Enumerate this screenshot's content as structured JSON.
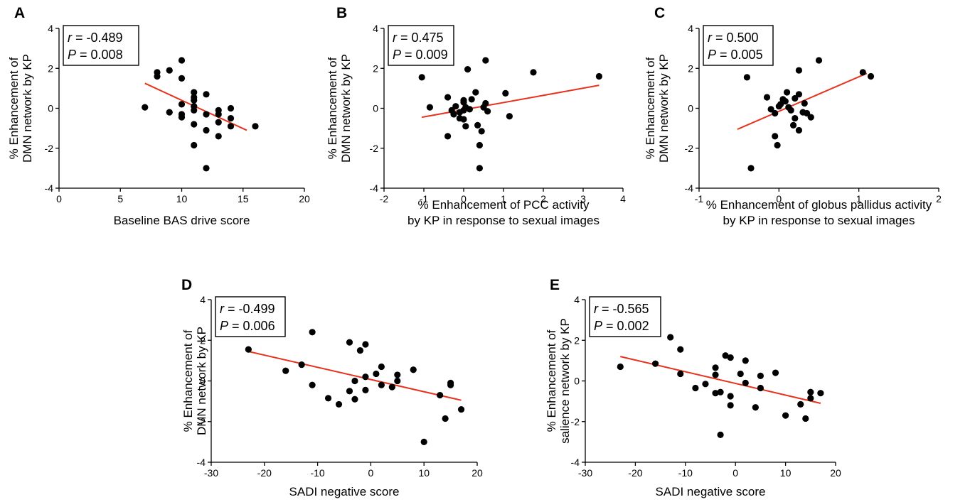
{
  "colors": {
    "fit_line": "#e8321e",
    "points": "#000000"
  },
  "chart_data": [
    {
      "type": "scatter",
      "panel": "A",
      "xlabel": [
        "Baseline BAS drive score"
      ],
      "ylabel": [
        "% Enhancement of",
        "DMN network by KP"
      ],
      "xlim": [
        0,
        20
      ],
      "ylim": [
        -4,
        4
      ],
      "xticks": [
        0,
        5,
        10,
        15,
        20
      ],
      "yticks": [
        -4,
        -2,
        0,
        2,
        4
      ],
      "stats": {
        "r_label": "r",
        "r_value": "= -0.489",
        "p_label": "P",
        "p_value": "= 0.008"
      },
      "fit": {
        "x": [
          7,
          15.3
        ],
        "y": [
          1.25,
          -1.1
        ]
      },
      "points": [
        [
          7,
          0.05
        ],
        [
          8,
          1.8
        ],
        [
          8,
          1.6
        ],
        [
          9,
          1.9
        ],
        [
          9,
          -0.2
        ],
        [
          10,
          2.4
        ],
        [
          10,
          1.5
        ],
        [
          10,
          0.2
        ],
        [
          10,
          -0.3
        ],
        [
          10,
          -0.45
        ],
        [
          11,
          0.8
        ],
        [
          11,
          0.55
        ],
        [
          11,
          0.4
        ],
        [
          11,
          0.1
        ],
        [
          11,
          -0.1
        ],
        [
          11,
          -0.8
        ],
        [
          11,
          -1.85
        ],
        [
          12,
          0.7
        ],
        [
          12,
          -0.3
        ],
        [
          12,
          -1.1
        ],
        [
          12,
          -3.0
        ],
        [
          13,
          -0.1
        ],
        [
          13,
          -0.3
        ],
        [
          13,
          -0.7
        ],
        [
          13,
          -1.4
        ],
        [
          14,
          0.0
        ],
        [
          14,
          -0.5
        ],
        [
          14,
          -0.9
        ],
        [
          16,
          -0.9
        ]
      ]
    },
    {
      "type": "scatter",
      "panel": "B",
      "xlabel": [
        "% Enhancement of PCC activity",
        "by KP in response to sexual images"
      ],
      "ylabel": [
        "% Enhancement of",
        "DMN network by KP"
      ],
      "xlim": [
        -2,
        4
      ],
      "ylim": [
        -4,
        4
      ],
      "xticks": [
        -2,
        -1,
        0,
        1,
        2,
        3,
        4
      ],
      "yticks": [
        -4,
        -2,
        0,
        2,
        4
      ],
      "stats": {
        "r_label": "r",
        "r_value": "= 0.475",
        "p_label": "P",
        "p_value": "= 0.009"
      },
      "fit": {
        "x": [
          -1.05,
          3.4
        ],
        "y": [
          -0.45,
          1.15
        ]
      },
      "points": [
        [
          -1.05,
          1.55
        ],
        [
          -0.85,
          0.05
        ],
        [
          -0.4,
          0.55
        ],
        [
          -0.4,
          -1.4
        ],
        [
          -0.3,
          -0.1
        ],
        [
          -0.25,
          -0.3
        ],
        [
          -0.2,
          0.1
        ],
        [
          -0.1,
          -0.2
        ],
        [
          -0.1,
          -0.5
        ],
        [
          0.0,
          0.4
        ],
        [
          0.0,
          0.3
        ],
        [
          0.0,
          -0.1
        ],
        [
          0.0,
          -0.55
        ],
        [
          0.05,
          -0.9
        ],
        [
          0.05,
          0.05
        ],
        [
          0.1,
          1.95
        ],
        [
          0.15,
          -0.05
        ],
        [
          0.2,
          0.45
        ],
        [
          0.3,
          0.8
        ],
        [
          0.35,
          -0.85
        ],
        [
          0.4,
          -1.85
        ],
        [
          0.4,
          -3.0
        ],
        [
          0.45,
          -1.15
        ],
        [
          0.5,
          0.05
        ],
        [
          0.55,
          2.4
        ],
        [
          0.55,
          0.25
        ],
        [
          0.6,
          -0.15
        ],
        [
          1.05,
          0.75
        ],
        [
          1.15,
          -0.4
        ],
        [
          1.75,
          1.8
        ],
        [
          3.4,
          1.6
        ]
      ]
    },
    {
      "type": "scatter",
      "panel": "C",
      "xlabel": [
        "% Enhancement of globus pallidus activity",
        "by KP in response to sexual images"
      ],
      "ylabel": [
        "% Enhancement of",
        "DMN network by KP"
      ],
      "xlim": [
        -1,
        2
      ],
      "ylim": [
        -4,
        4
      ],
      "xticks": [
        -1,
        0,
        1,
        2
      ],
      "yticks": [
        -4,
        -2,
        0,
        2,
        4
      ],
      "stats": {
        "r_label": "r",
        "r_value": "= 0.500",
        "p_label": "P",
        "p_value": "= 0.005"
      },
      "fit": {
        "x": [
          -0.52,
          1.1
        ],
        "y": [
          -1.05,
          1.75
        ]
      },
      "points": [
        [
          -0.4,
          1.55
        ],
        [
          -0.35,
          -3.0
        ],
        [
          -0.15,
          0.55
        ],
        [
          -0.1,
          -0.05
        ],
        [
          -0.05,
          -0.25
        ],
        [
          -0.05,
          -1.4
        ],
        [
          -0.02,
          -1.85
        ],
        [
          0.0,
          0.1
        ],
        [
          0.02,
          0.2
        ],
        [
          0.05,
          0.45
        ],
        [
          0.08,
          0.35
        ],
        [
          0.1,
          0.8
        ],
        [
          0.12,
          0.05
        ],
        [
          0.15,
          -0.1
        ],
        [
          0.18,
          -0.85
        ],
        [
          0.2,
          -0.5
        ],
        [
          0.2,
          0.5
        ],
        [
          0.25,
          1.9
        ],
        [
          0.25,
          0.7
        ],
        [
          0.25,
          -1.1
        ],
        [
          0.3,
          -0.2
        ],
        [
          0.32,
          0.25
        ],
        [
          0.35,
          -0.25
        ],
        [
          0.4,
          -0.45
        ],
        [
          0.5,
          2.4
        ],
        [
          1.05,
          1.8
        ],
        [
          1.15,
          1.6
        ]
      ]
    },
    {
      "type": "scatter",
      "panel": "D",
      "xlabel": [
        "SADI negative score"
      ],
      "ylabel": [
        "% Enhancement of",
        "DMN network by KP"
      ],
      "xlim": [
        -30,
        20
      ],
      "ylim": [
        -4,
        4
      ],
      "xticks": [
        -30,
        -20,
        -10,
        0,
        10,
        20
      ],
      "yticks": [
        -4,
        -2,
        0,
        2,
        4
      ],
      "stats": {
        "r_label": "r",
        "r_value": "= -0.499",
        "p_label": "P",
        "p_value": "= 0.006"
      },
      "fit": {
        "x": [
          -23,
          17
        ],
        "y": [
          1.45,
          -0.95
        ]
      },
      "points": [
        [
          -23,
          1.55
        ],
        [
          -16,
          0.5
        ],
        [
          -13,
          0.8
        ],
        [
          -11,
          2.4
        ],
        [
          -11,
          -0.2
        ],
        [
          -8,
          -0.85
        ],
        [
          -6,
          -1.15
        ],
        [
          -4,
          1.9
        ],
        [
          -4,
          -0.5
        ],
        [
          -3,
          0.0
        ],
        [
          -3,
          -0.9
        ],
        [
          -2,
          1.5
        ],
        [
          -1,
          1.8
        ],
        [
          -1,
          0.2
        ],
        [
          -1,
          -0.45
        ],
        [
          1,
          0.35
        ],
        [
          2,
          0.7
        ],
        [
          2,
          -0.2
        ],
        [
          4,
          -0.3
        ],
        [
          5,
          0.3
        ],
        [
          5,
          0.0
        ],
        [
          8,
          0.55
        ],
        [
          10,
          -3.0
        ],
        [
          13,
          -0.7
        ],
        [
          14,
          -1.85
        ],
        [
          15,
          -0.1
        ],
        [
          15,
          -0.2
        ],
        [
          17,
          -1.4
        ]
      ]
    },
    {
      "type": "scatter",
      "panel": "E",
      "xlabel": [
        "SADI negative score"
      ],
      "ylabel": [
        "% Enhancement of",
        "salience network by KP"
      ],
      "xlim": [
        -30,
        20
      ],
      "ylim": [
        -4,
        4
      ],
      "xticks": [
        -30,
        -20,
        -10,
        0,
        10,
        20
      ],
      "yticks": [
        -4,
        -2,
        0,
        2,
        4
      ],
      "stats": {
        "r_label": "r",
        "r_value": "= -0.565",
        "p_label": "P",
        "p_value": "= 0.002"
      },
      "fit": {
        "x": [
          -23,
          17
        ],
        "y": [
          1.2,
          -1.1
        ]
      },
      "points": [
        [
          -23,
          0.7
        ],
        [
          -16,
          0.85
        ],
        [
          -13,
          2.15
        ],
        [
          -11,
          1.55
        ],
        [
          -11,
          0.35
        ],
        [
          -8,
          -0.35
        ],
        [
          -6,
          -0.15
        ],
        [
          -4,
          0.65
        ],
        [
          -4,
          0.3
        ],
        [
          -4,
          -0.6
        ],
        [
          -3,
          -0.55
        ],
        [
          -3,
          -2.65
        ],
        [
          -2,
          1.25
        ],
        [
          -1,
          1.15
        ],
        [
          -1,
          -0.75
        ],
        [
          -1,
          -1.2
        ],
        [
          1,
          0.35
        ],
        [
          2,
          1.0
        ],
        [
          2,
          -0.1
        ],
        [
          4,
          -1.3
        ],
        [
          5,
          0.25
        ],
        [
          5,
          -0.35
        ],
        [
          8,
          0.4
        ],
        [
          10,
          -1.7
        ],
        [
          13,
          -1.15
        ],
        [
          14,
          -1.85
        ],
        [
          15,
          -0.55
        ],
        [
          15,
          -0.85
        ],
        [
          17,
          -0.6
        ]
      ]
    }
  ]
}
